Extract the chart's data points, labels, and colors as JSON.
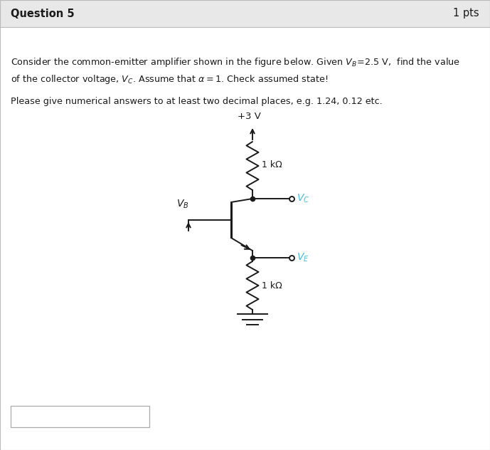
{
  "title": "Question 5",
  "pts": "1 pts",
  "bg_header": "#e8e8e8",
  "bg_body": "#ffffff",
  "text_color": "#1a1a1a",
  "cyan_color": "#4db8d4",
  "circuit_color": "#1a1a1a",
  "vcc_label": "+3 V",
  "rc_label": "1 kΩ",
  "re_label": "1 kΩ",
  "vb_label": "V_B",
  "vc_label": "V_C",
  "ve_label": "V_E",
  "figw": 6.89,
  "figh": 6.32,
  "dpi": 100
}
